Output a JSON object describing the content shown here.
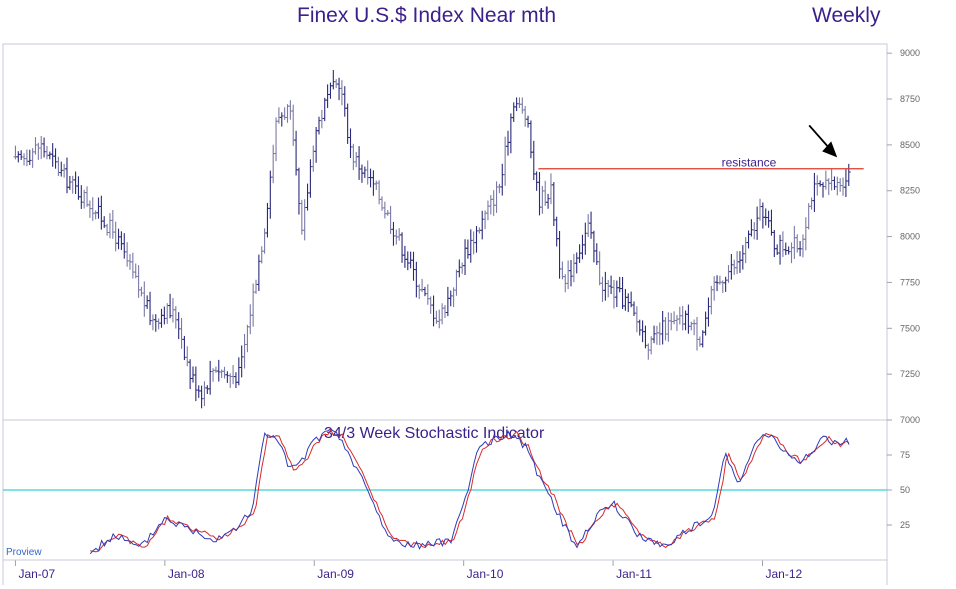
{
  "chart_data": {
    "type": "ohlc",
    "title": "Finex U.S.$ Index Near mth",
    "period_label": "Weekly",
    "price_panel": {
      "ylim": [
        7000,
        9050
      ],
      "yticks": [
        7000,
        7250,
        7500,
        7750,
        8000,
        8250,
        8500,
        8750,
        9000
      ],
      "resistance": {
        "label": "resistance",
        "value": 8370,
        "start_date": "2010-07",
        "end_date": "2012-08"
      },
      "arrow_target": {
        "date": "2012-07",
        "value": 8410
      },
      "anchors": [
        [
          "2007-01",
          8400
        ],
        [
          "2007-03",
          8500
        ],
        [
          "2007-05",
          8320
        ],
        [
          "2007-07",
          8180
        ],
        [
          "2007-09",
          8010
        ],
        [
          "2007-11",
          7700
        ],
        [
          "2007-12",
          7540
        ],
        [
          "2008-01",
          7600
        ],
        [
          "2008-02",
          7560
        ],
        [
          "2008-03",
          7250
        ],
        [
          "2008-04",
          7150
        ],
        [
          "2008-05",
          7300
        ],
        [
          "2008-06",
          7240
        ],
        [
          "2008-07",
          7250
        ],
        [
          "2008-08",
          7650
        ],
        [
          "2008-09",
          8050
        ],
        [
          "2008-10",
          8650
        ],
        [
          "2008-11",
          8700
        ],
        [
          "2008-12",
          8000
        ],
        [
          "2009-01",
          8550
        ],
        [
          "2009-02",
          8750
        ],
        [
          "2009-03",
          8850
        ],
        [
          "2009-04",
          8450
        ],
        [
          "2009-06",
          8250
        ],
        [
          "2009-08",
          7950
        ],
        [
          "2009-10",
          7650
        ],
        [
          "2009-11",
          7550
        ],
        [
          "2009-12",
          7700
        ],
        [
          "2010-01",
          7900
        ],
        [
          "2010-03",
          8150
        ],
        [
          "2010-04",
          8300
        ],
        [
          "2010-05",
          8750
        ],
        [
          "2010-06",
          8650
        ],
        [
          "2010-07",
          8200
        ],
        [
          "2010-08",
          8250
        ],
        [
          "2010-09",
          7700
        ],
        [
          "2010-10",
          7900
        ],
        [
          "2010-11",
          8050
        ],
        [
          "2010-12",
          7750
        ],
        [
          "2011-02",
          7650
        ],
        [
          "2011-04",
          7400
        ],
        [
          "2011-05",
          7500
        ],
        [
          "2011-07",
          7550
        ],
        [
          "2011-08",
          7450
        ],
        [
          "2011-09",
          7700
        ],
        [
          "2011-10",
          7800
        ],
        [
          "2011-11",
          7850
        ],
        [
          "2012-01",
          8150
        ],
        [
          "2012-02",
          7950
        ],
        [
          "2012-04",
          7950
        ],
        [
          "2012-05",
          8250
        ],
        [
          "2012-07",
          8280
        ],
        [
          "2012-08",
          8350
        ]
      ]
    },
    "stochastic_panel": {
      "title": "34/3 Week Stochastic Indicator",
      "ylim": [
        0,
        100
      ],
      "yticks": [
        25,
        50,
        75
      ],
      "reference_level": 50,
      "series": [
        {
          "color": "#2f3bb8",
          "role": "%K"
        },
        {
          "color": "#d92b2b",
          "role": "%D"
        }
      ],
      "anchors": [
        [
          "2007-07",
          5
        ],
        [
          "2007-09",
          18
        ],
        [
          "2007-11",
          8
        ],
        [
          "2008-01",
          30
        ],
        [
          "2008-03",
          22
        ],
        [
          "2008-05",
          15
        ],
        [
          "2008-07",
          25
        ],
        [
          "2008-08",
          35
        ],
        [
          "2008-09",
          90
        ],
        [
          "2008-10",
          88
        ],
        [
          "2008-11",
          65
        ],
        [
          "2008-12",
          70
        ],
        [
          "2009-01",
          85
        ],
        [
          "2009-02",
          92
        ],
        [
          "2009-03",
          88
        ],
        [
          "2009-05",
          55
        ],
        [
          "2009-07",
          15
        ],
        [
          "2009-09",
          10
        ],
        [
          "2009-11",
          12
        ],
        [
          "2009-12",
          15
        ],
        [
          "2010-01",
          40
        ],
        [
          "2010-02",
          75
        ],
        [
          "2010-03",
          85
        ],
        [
          "2010-05",
          90
        ],
        [
          "2010-06",
          80
        ],
        [
          "2010-07",
          60
        ],
        [
          "2010-08",
          45
        ],
        [
          "2010-09",
          25
        ],
        [
          "2010-10",
          10
        ],
        [
          "2010-12",
          35
        ],
        [
          "2011-01",
          40
        ],
        [
          "2011-03",
          18
        ],
        [
          "2011-05",
          10
        ],
        [
          "2011-07",
          22
        ],
        [
          "2011-09",
          30
        ],
        [
          "2011-10",
          78
        ],
        [
          "2011-11",
          55
        ],
        [
          "2011-12",
          75
        ],
        [
          "2012-01",
          92
        ],
        [
          "2012-02",
          85
        ],
        [
          "2012-03",
          75
        ],
        [
          "2012-04",
          70
        ],
        [
          "2012-05",
          78
        ],
        [
          "2012-06",
          88
        ],
        [
          "2012-07",
          82
        ],
        [
          "2012-08",
          85
        ]
      ]
    },
    "x_range": [
      "2006-12",
      "2012-11"
    ],
    "x_ticks": [
      {
        "date": "2007-01",
        "label": "Jan-07"
      },
      {
        "date": "2008-01",
        "label": "Jan-08"
      },
      {
        "date": "2009-01",
        "label": "Jan-09"
      },
      {
        "date": "2010-01",
        "label": "Jan-10"
      },
      {
        "date": "2011-01",
        "label": "Jan-11"
      },
      {
        "date": "2012-01",
        "label": "Jan-12"
      }
    ],
    "colors": {
      "bars": "#2a2a7a",
      "resistance": "#e03a2a",
      "reference": "#32d3d8",
      "title": "#3b1f8a",
      "frame": "#c8c8d8"
    }
  },
  "branding": "Proview"
}
